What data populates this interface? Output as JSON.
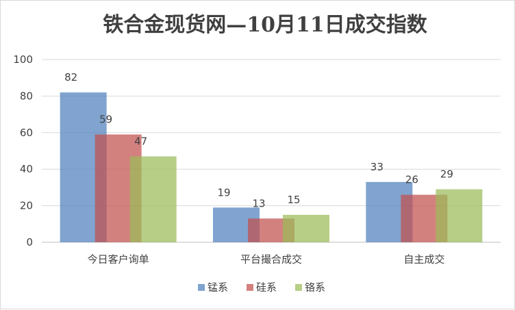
{
  "chart_data": {
    "type": "bar",
    "title": "铁合金现货网—10月11日成交指数",
    "categories": [
      "今日客户询单",
      "平台撮合成交",
      "自主成交"
    ],
    "series": [
      {
        "name": "锰系",
        "values": [
          82,
          19,
          33
        ],
        "color": "#4F81BD"
      },
      {
        "name": "硅系",
        "values": [
          59,
          13,
          26
        ],
        "color": "#C0504D"
      },
      {
        "name": "铬系",
        "values": [
          47,
          15,
          29
        ],
        "color": "#9BBB59"
      }
    ],
    "ylim": [
      0,
      100
    ],
    "yticks": [
      "0",
      "20",
      "40",
      "60",
      "80",
      "100"
    ],
    "grid": true,
    "legend": "bottom"
  }
}
